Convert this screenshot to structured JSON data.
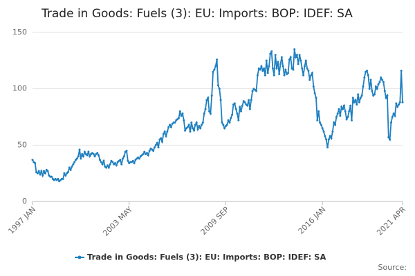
{
  "chart_data": {
    "type": "line",
    "title": "Trade in Goods: Fuels (3): EU: Imports: BOP: IDEF: SA",
    "source": "Source:",
    "categories": [
      "1997 JAN",
      null,
      null,
      null,
      null,
      null,
      null,
      null,
      null,
      null,
      null,
      null,
      null,
      null,
      null,
      null,
      null,
      null,
      null,
      null,
      null,
      null,
      null,
      null,
      null,
      null,
      null,
      null,
      null,
      null,
      null,
      null,
      null,
      null,
      null,
      null,
      null,
      null,
      null,
      null,
      null,
      null,
      null,
      null,
      null,
      null,
      null,
      null,
      null,
      null,
      null,
      null,
      null,
      null,
      null,
      null,
      null,
      null,
      null,
      null,
      null,
      null,
      null,
      null,
      null,
      null,
      null,
      null,
      null,
      null,
      null,
      null,
      null,
      null,
      null,
      null,
      "2003 MAY",
      null,
      null,
      null,
      null,
      null,
      null,
      null,
      null,
      null,
      null,
      null,
      null,
      null,
      null,
      null,
      null,
      null,
      null,
      null,
      null,
      null,
      null,
      null,
      null,
      null,
      null,
      null,
      null,
      null,
      null,
      null,
      null,
      null,
      null,
      null,
      null,
      null,
      null,
      null,
      null,
      null,
      null,
      null,
      null,
      null,
      null,
      null,
      null,
      null,
      null,
      null,
      null,
      null,
      null,
      null,
      null,
      null,
      null,
      null,
      null,
      null,
      null,
      null,
      null,
      null,
      null,
      null,
      null,
      null,
      null,
      null,
      null,
      null,
      null,
      null,
      "2009 SEP",
      null,
      null,
      null,
      null,
      null,
      null,
      null,
      null,
      null,
      null,
      null,
      null,
      null,
      null,
      null,
      null,
      null,
      null,
      null,
      null,
      null,
      null,
      null,
      null,
      null,
      null,
      null,
      null,
      null,
      null,
      null,
      null,
      null,
      null,
      null,
      null,
      null,
      null,
      null,
      null,
      null,
      null,
      null,
      null,
      null,
      null,
      null,
      null,
      null,
      null,
      null,
      null,
      null,
      null,
      null,
      null,
      null,
      null,
      null,
      null,
      null,
      null,
      null,
      null,
      null,
      null,
      null,
      null,
      null,
      null,
      null,
      null,
      null,
      null,
      null,
      "2016 JAN",
      null,
      null,
      null,
      null,
      null,
      null,
      null,
      null,
      null,
      null,
      null,
      null,
      null,
      null,
      null,
      null,
      null,
      null,
      null,
      null,
      null,
      null,
      null,
      null,
      null,
      null,
      null,
      null,
      null,
      null,
      null,
      null,
      null,
      null,
      null,
      null,
      null,
      null,
      null,
      null,
      null,
      null,
      null,
      null,
      null,
      null,
      null,
      null,
      null,
      null,
      null,
      null,
      null,
      null,
      null,
      null,
      null,
      null,
      null,
      null,
      null,
      null,
      "2021 APR"
    ],
    "series": [
      {
        "name": "Trade in Goods: Fuels (3): EU: Imports: BOP: IDEF: SA",
        "color": "#1f7fc0",
        "values": [
          37,
          35,
          34,
          26,
          25,
          27,
          24,
          27,
          23,
          27,
          25,
          28,
          27,
          23,
          22,
          22,
          20,
          19,
          20,
          19,
          20,
          18,
          19,
          20,
          20,
          25,
          23,
          25,
          26,
          30,
          28,
          31,
          33,
          35,
          37,
          38,
          40,
          46,
          38,
          42,
          40,
          44,
          42,
          41,
          44,
          40,
          42,
          43,
          42,
          40,
          42,
          43,
          41,
          37,
          35,
          33,
          36,
          31,
          30,
          32,
          30,
          33,
          36,
          35,
          33,
          34,
          32,
          35,
          36,
          37,
          33,
          38,
          40,
          44,
          45,
          36,
          34,
          35,
          35,
          36,
          34,
          37,
          38,
          39,
          38,
          40,
          41,
          42,
          44,
          42,
          43,
          41,
          45,
          47,
          46,
          45,
          48,
          50,
          52,
          48,
          55,
          56,
          53,
          60,
          62,
          58,
          62,
          66,
          68,
          66,
          69,
          70,
          70,
          72,
          73,
          74,
          80,
          76,
          78,
          72,
          63,
          65,
          66,
          68,
          62,
          70,
          65,
          63,
          68,
          70,
          64,
          67,
          65,
          68,
          70,
          78,
          82,
          90,
          92,
          80,
          78,
          94,
          115,
          117,
          120,
          126,
          103,
          100,
          90,
          70,
          68,
          65,
          67,
          68,
          72,
          70,
          74,
          77,
          86,
          87,
          82,
          78,
          72,
          84,
          80,
          85,
          89,
          88,
          86,
          85,
          90,
          82,
          90,
          98,
          100,
          99,
          98,
          112,
          118,
          117,
          120,
          116,
          118,
          112,
          125,
          114,
          120,
          131,
          133,
          118,
          112,
          130,
          118,
          124,
          113,
          122,
          128,
          120,
          112,
          117,
          113,
          114,
          126,
          128,
          118,
          117,
          135,
          128,
          130,
          122,
          130,
          125,
          118,
          112,
          120,
          125,
          118,
          116,
          108,
          112,
          114,
          102,
          96,
          92,
          72,
          80,
          70,
          68,
          65,
          62,
          58,
          55,
          48,
          55,
          58,
          56,
          62,
          70,
          68,
          75,
          78,
          82,
          76,
          84,
          82,
          85,
          80,
          73,
          75,
          80,
          85,
          72,
          92,
          88,
          90,
          86,
          95,
          88,
          92,
          94,
          102,
          110,
          115,
          116,
          112,
          100,
          108,
          98,
          94,
          95,
          102,
          100,
          104,
          106,
          110,
          108,
          106,
          98,
          92,
          94,
          57,
          55,
          70,
          75,
          78,
          76,
          87,
          84,
          86,
          88,
          116,
          88
        ]
      }
    ],
    "ylim": [
      0,
      150
    ],
    "yticks": [
      0,
      50,
      100,
      150
    ],
    "grid": true
  }
}
